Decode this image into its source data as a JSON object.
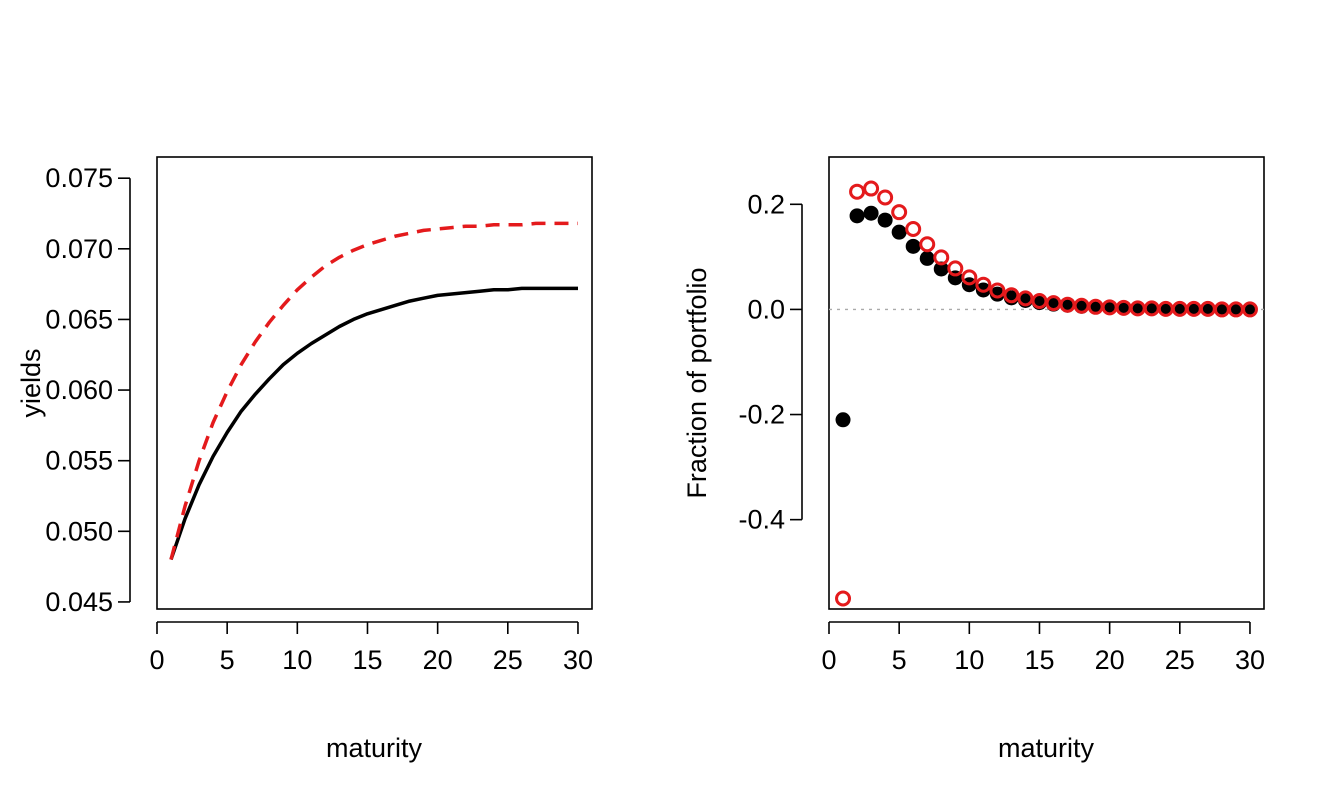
{
  "chart_data": [
    {
      "type": "line",
      "xlabel": "maturity",
      "ylabel": "yields",
      "xlim": [
        0,
        31
      ],
      "ylim": [
        0.0445,
        0.0765
      ],
      "x_ticks": [
        0,
        5,
        10,
        15,
        20,
        25,
        30
      ],
      "y_ticks": [
        0.045,
        0.05,
        0.055,
        0.06,
        0.065,
        0.07,
        0.075
      ],
      "x_tick_labels": [
        "0",
        "5",
        "10",
        "15",
        "20",
        "25",
        "30"
      ],
      "y_tick_labels": [
        "0.045",
        "0.050",
        "0.055",
        "0.060",
        "0.065",
        "0.070",
        "0.075"
      ],
      "grid": false,
      "x": [
        1,
        2,
        3,
        4,
        5,
        6,
        7,
        8,
        9,
        10,
        11,
        12,
        13,
        14,
        15,
        16,
        17,
        18,
        19,
        20,
        21,
        22,
        23,
        24,
        25,
        26,
        27,
        28,
        29,
        30
      ],
      "series": [
        {
          "style": "solid",
          "color": "#000000",
          "values": [
            0.048,
            0.0509,
            0.0533,
            0.0553,
            0.057,
            0.0585,
            0.0597,
            0.0608,
            0.0618,
            0.0626,
            0.0633,
            0.0639,
            0.0645,
            0.065,
            0.0654,
            0.0657,
            0.066,
            0.0663,
            0.0665,
            0.0667,
            0.0668,
            0.0669,
            0.067,
            0.0671,
            0.0671,
            0.0672,
            0.0672,
            0.0672,
            0.0672,
            0.0672
          ]
        },
        {
          "style": "dashed",
          "color": "#e41a1c",
          "values": [
            0.048,
            0.0518,
            0.055,
            0.0577,
            0.0599,
            0.0618,
            0.0634,
            0.0648,
            0.066,
            0.0671,
            0.068,
            0.0688,
            0.0694,
            0.0699,
            0.0703,
            0.0706,
            0.0709,
            0.0711,
            0.0713,
            0.0714,
            0.0715,
            0.0716,
            0.0716,
            0.0717,
            0.0717,
            0.0717,
            0.0718,
            0.0718,
            0.0718,
            0.0718
          ]
        }
      ]
    },
    {
      "type": "scatter",
      "xlabel": "maturity",
      "ylabel": "Fraction of portfolio",
      "xlim": [
        0,
        31
      ],
      "ylim": [
        -0.57,
        0.29
      ],
      "x_ticks": [
        0,
        5,
        10,
        15,
        20,
        25,
        30
      ],
      "y_ticks": [
        -0.4,
        -0.2,
        0.0,
        0.2
      ],
      "x_tick_labels": [
        "0",
        "5",
        "10",
        "15",
        "20",
        "25",
        "30"
      ],
      "y_tick_labels": [
        "-0.4",
        "-0.2",
        "0.0",
        "0.2"
      ],
      "grid": false,
      "reference_line": {
        "y": 0,
        "style": "dotted",
        "color": "#aaaaaa"
      },
      "x": [
        1,
        2,
        3,
        4,
        5,
        6,
        7,
        8,
        9,
        10,
        11,
        12,
        13,
        14,
        15,
        16,
        17,
        18,
        19,
        20,
        21,
        22,
        23,
        24,
        25,
        26,
        27,
        28,
        29,
        30
      ],
      "series": [
        {
          "marker": "filled-circle",
          "color": "#000000",
          "values": [
            -0.21,
            0.178,
            0.183,
            0.17,
            0.147,
            0.12,
            0.097,
            0.077,
            0.06,
            0.047,
            0.037,
            0.029,
            0.022,
            0.017,
            0.013,
            0.01,
            0.008,
            0.006,
            0.005,
            0.004,
            0.003,
            0.002,
            0.002,
            0.001,
            0.001,
            0.001,
            0.001,
            0.0,
            0.0,
            0.0
          ]
        },
        {
          "marker": "open-circle",
          "color": "#e41a1c",
          "values": [
            -0.55,
            0.224,
            0.23,
            0.213,
            0.185,
            0.153,
            0.124,
            0.099,
            0.078,
            0.061,
            0.047,
            0.036,
            0.027,
            0.021,
            0.016,
            0.012,
            0.009,
            0.007,
            0.005,
            0.004,
            0.003,
            0.002,
            0.002,
            0.001,
            0.001,
            0.001,
            0.001,
            0.0,
            0.0,
            0.0
          ]
        }
      ]
    }
  ]
}
